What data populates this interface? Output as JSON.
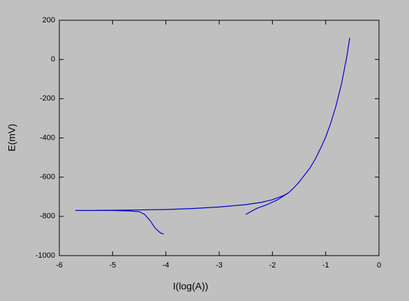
{
  "chart_data": {
    "type": "line",
    "xlabel": "I(log(A))",
    "ylabel": "E(mV)",
    "xlim": [
      -6,
      0
    ],
    "xticks": [
      -6,
      -5,
      -4,
      -3,
      -2,
      -1,
      0
    ],
    "ylim": [
      -1000,
      200
    ],
    "yticks": [
      -1000,
      -800,
      -600,
      -400,
      -200,
      0,
      200
    ],
    "series": [
      {
        "color": "#0000cc",
        "x": [
          -4.04,
          -4.1,
          -4.2,
          -4.3,
          -4.4,
          -4.5,
          -4.7,
          -5.0,
          -5.3,
          -5.7
        ],
        "values": [
          -890,
          -885,
          -860,
          -820,
          -790,
          -776,
          -772,
          -770,
          -770,
          -770
        ]
      },
      {
        "color": "#0000cc",
        "x": [
          -5.3,
          -4.5,
          -4,
          -3.5,
          -3,
          -2.5,
          -2.2,
          -2.0,
          -1.8,
          -1.7,
          -1.6,
          -1.5,
          -1.4,
          -1.3,
          -1.2,
          -1.1,
          -1.0,
          -0.9,
          -0.8,
          -0.7,
          -0.6,
          -0.55
        ],
        "values": [
          -770,
          -767,
          -765,
          -760,
          -752,
          -740,
          -728,
          -715,
          -695,
          -680,
          -655,
          -625,
          -590,
          -555,
          -510,
          -455,
          -395,
          -320,
          -230,
          -120,
          20,
          110
        ]
      },
      {
        "color": "#0000cc",
        "x": [
          -2.5,
          -2.3,
          -2.1,
          -1.9,
          -1.7
        ],
        "values": [
          -790,
          -760,
          -740,
          -715,
          -680
        ]
      }
    ]
  }
}
